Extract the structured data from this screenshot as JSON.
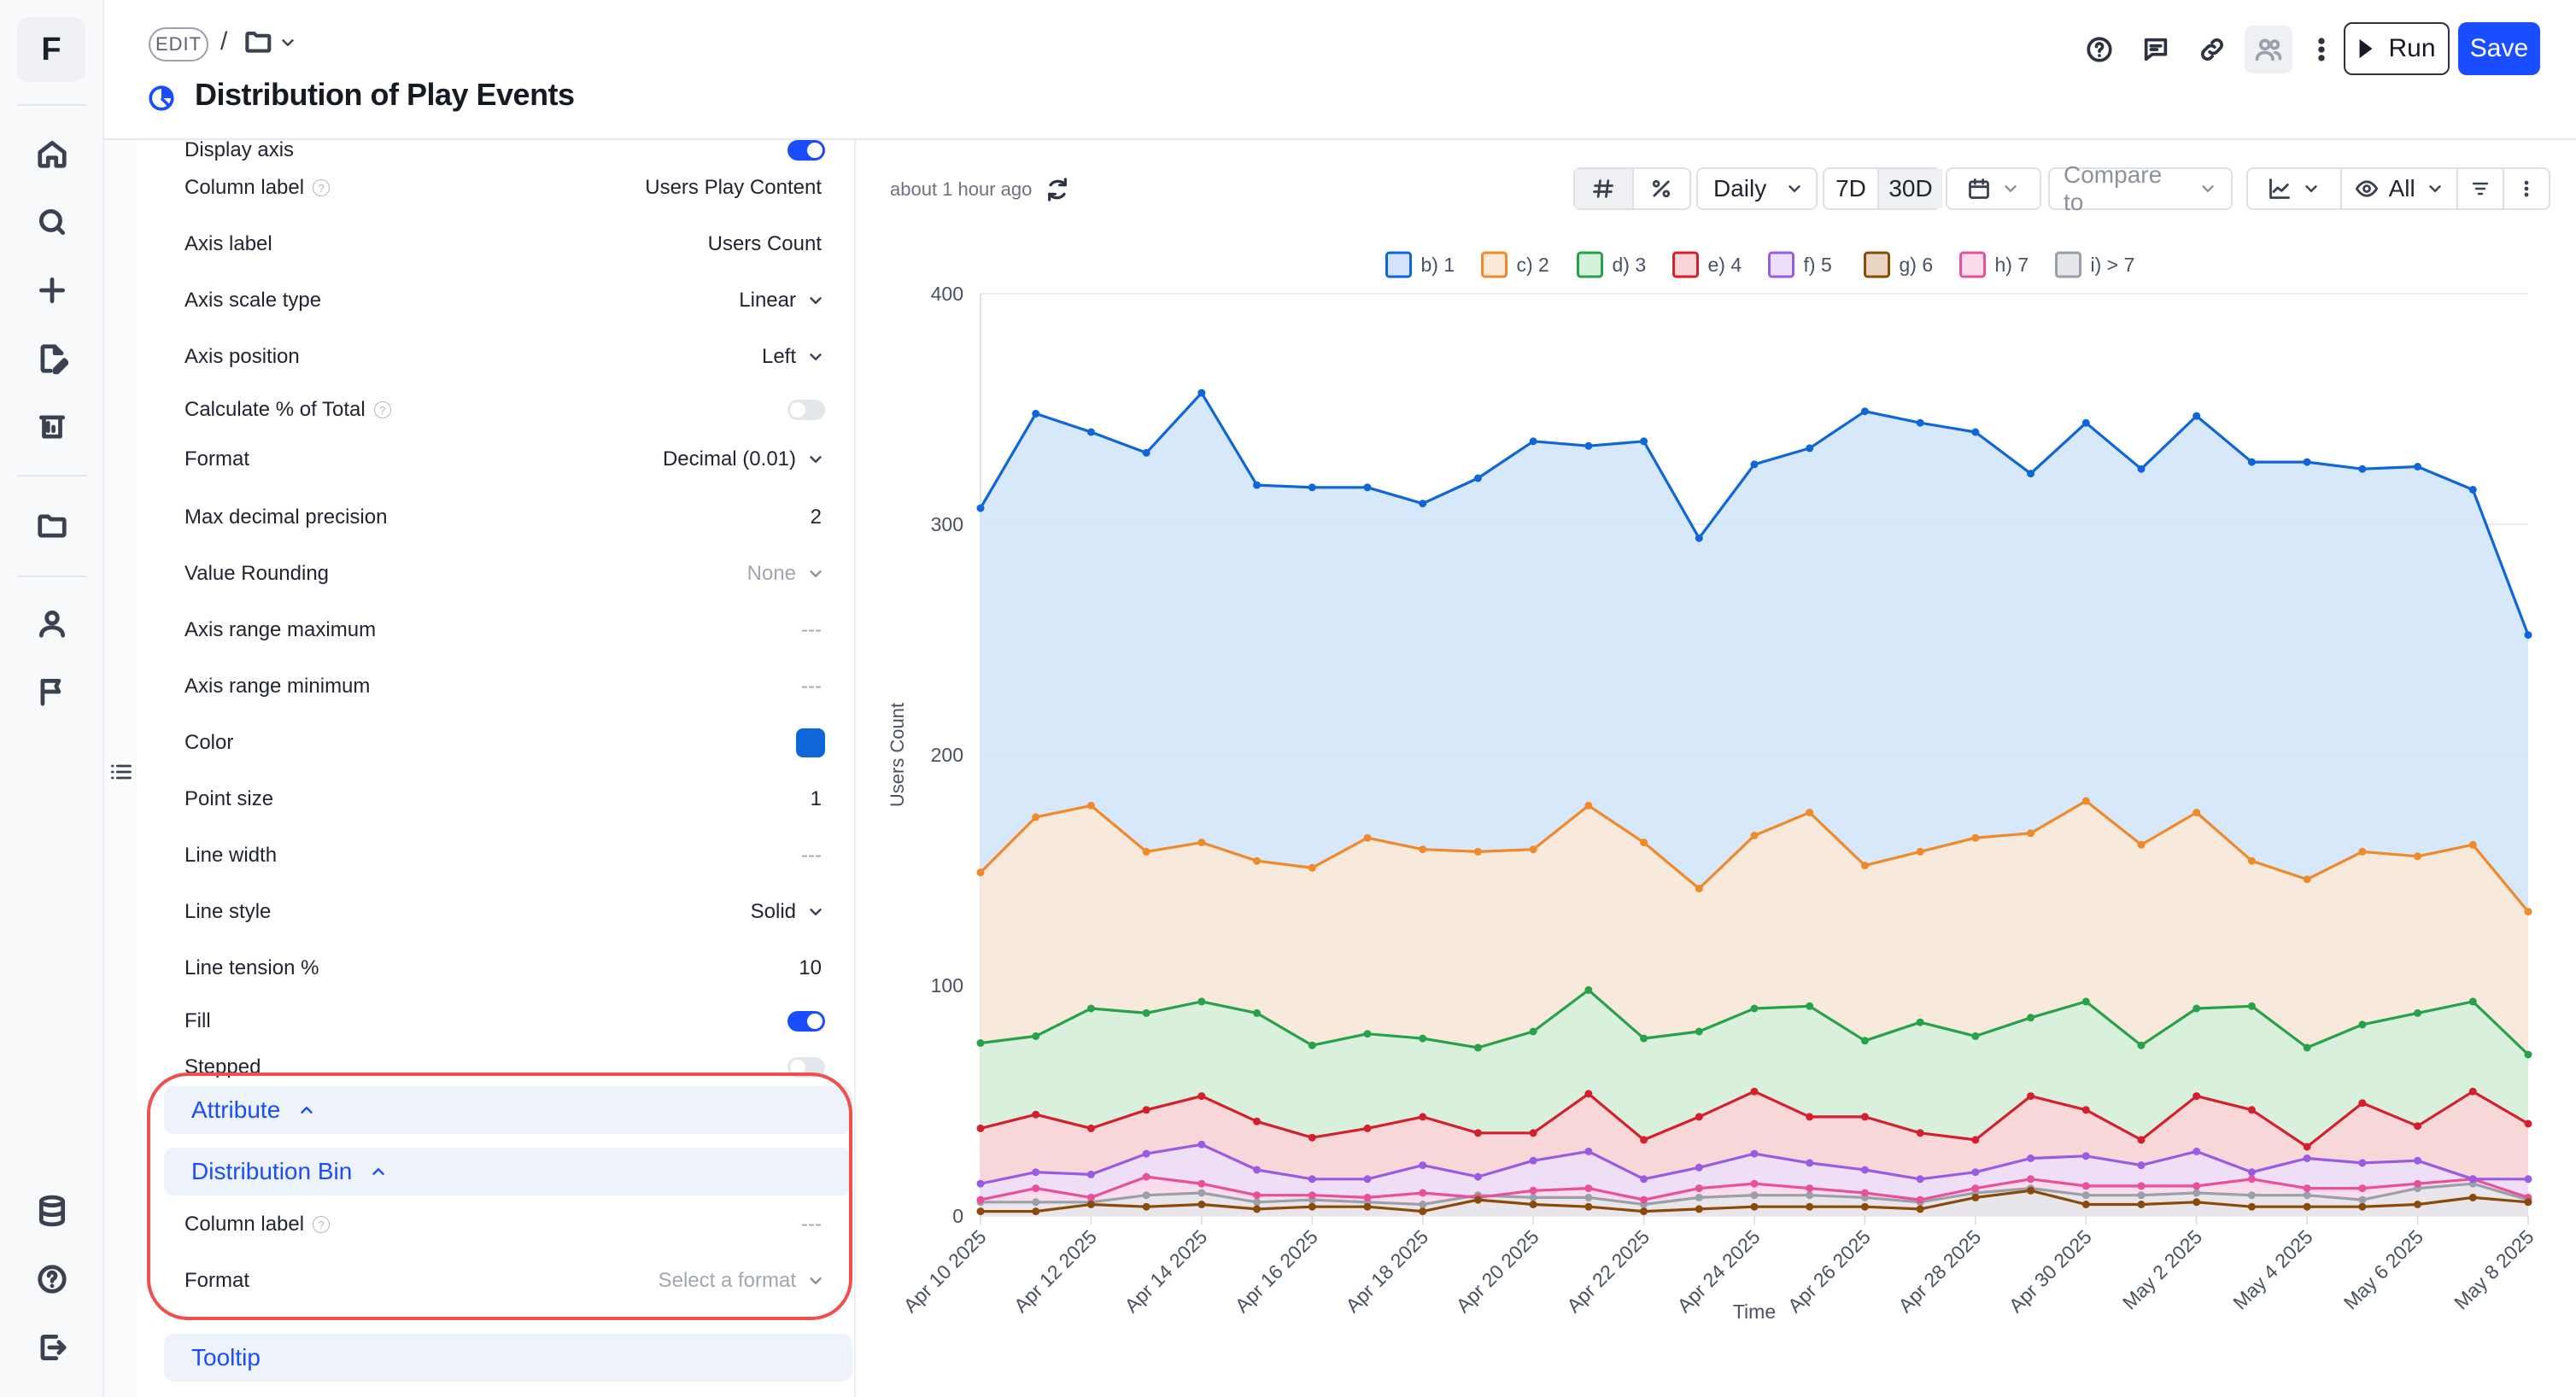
{
  "rail": {
    "logo": "F",
    "items": [
      "home-icon",
      "search-icon",
      "plus-icon",
      "edit-doc-icon",
      "flask-icon",
      "folder-icon",
      "user-icon",
      "flag-icon"
    ],
    "bottom": [
      "database-icon",
      "help-icon",
      "logout-icon"
    ]
  },
  "header": {
    "edit_label": "EDIT",
    "separator": "/",
    "title": "Distribution of Play Events",
    "run_label": "Run",
    "save_label": "Save",
    "accent": "#1a4dff"
  },
  "settings": {
    "rows": [
      {
        "label": "Display axis",
        "kind": "toggle",
        "on": true
      },
      {
        "label": "Column label",
        "kind": "text",
        "value": "Users Play Content",
        "info": true
      },
      {
        "label": "Axis label",
        "kind": "text",
        "value": "Users Count"
      },
      {
        "label": "Axis scale type",
        "kind": "select",
        "value": "Linear"
      },
      {
        "label": "Axis position",
        "kind": "select",
        "value": "Left"
      },
      {
        "label": "Calculate % of Total",
        "kind": "toggle",
        "on": false,
        "info": true
      },
      {
        "label": "Format",
        "kind": "select",
        "value": "Decimal (0.01)"
      },
      {
        "label": "Max decimal precision",
        "kind": "text",
        "value": "2"
      },
      {
        "label": "Value Rounding",
        "kind": "select",
        "value": "None",
        "muted": true
      },
      {
        "label": "Axis range maximum",
        "kind": "text",
        "value": "---",
        "muted": true
      },
      {
        "label": "Axis range minimum",
        "kind": "text",
        "value": "---",
        "muted": true
      },
      {
        "label": "Color",
        "kind": "color",
        "value": "#0f66d9"
      },
      {
        "label": "Point size",
        "kind": "text",
        "value": "1"
      },
      {
        "label": "Line width",
        "kind": "text",
        "value": "---",
        "muted": true
      },
      {
        "label": "Line style",
        "kind": "select",
        "value": "Solid"
      },
      {
        "label": "Line tension %",
        "kind": "text",
        "value": "10"
      },
      {
        "label": "Fill",
        "kind": "toggle",
        "on": true
      },
      {
        "label": "Stepped",
        "kind": "toggle",
        "on": false
      }
    ],
    "sections": {
      "attribute": "Attribute",
      "distribution_bin": "Distribution Bin",
      "tooltip": "Tooltip"
    },
    "bin_rows": [
      {
        "label": "Column label",
        "kind": "text",
        "value": "---",
        "muted": true,
        "info": true
      },
      {
        "label": "Format",
        "kind": "select",
        "value": "Select a format",
        "muted": true
      }
    ]
  },
  "toolbar": {
    "updated": "about 1 hour ago",
    "granularity": "Daily",
    "range_7d": "7D",
    "range_30d": "30D",
    "compare": "Compare to",
    "visibility": "All"
  },
  "chart_data": {
    "type": "area",
    "stacked": false,
    "ylabel": "Users Count",
    "xlabel": "Time",
    "ylim": [
      0,
      400
    ],
    "yticks": [
      0,
      100,
      200,
      300,
      400
    ],
    "xtick_labels": [
      "Apr 10 2025",
      "Apr 12 2025",
      "Apr 14 2025",
      "Apr 16 2025",
      "Apr 18 2025",
      "Apr 20 2025",
      "Apr 22 2025",
      "Apr 24 2025",
      "Apr 26 2025",
      "Apr 28 2025",
      "Apr 30 2025",
      "May 2 2025",
      "May 4 2025",
      "May 6 2025",
      "May 8 2025"
    ],
    "legend_position": "top",
    "series": [
      {
        "name": "b) 1",
        "color": "#0f66d9",
        "fill": "#d4e5fb",
        "values": [
          307,
          348,
          340,
          331,
          357,
          317,
          316,
          316,
          309,
          320,
          336,
          334,
          336,
          294,
          326,
          333,
          349,
          344,
          340,
          322,
          344,
          324,
          347,
          327,
          327,
          324,
          325,
          315,
          252
        ]
      },
      {
        "name": "c) 2",
        "color": "#ef8a2b",
        "fill": "#fbe9d8",
        "values": [
          149,
          173,
          178,
          158,
          162,
          154,
          151,
          164,
          159,
          158,
          159,
          178,
          162,
          142,
          165,
          175,
          152,
          158,
          164,
          166,
          180,
          161,
          175,
          154,
          146,
          158,
          156,
          161,
          132
        ]
      },
      {
        "name": "d) 3",
        "color": "#27a24a",
        "fill": "#d5f2dc",
        "values": [
          75,
          78,
          90,
          88,
          93,
          88,
          74,
          79,
          77,
          73,
          80,
          98,
          77,
          80,
          90,
          91,
          76,
          84,
          78,
          86,
          93,
          74,
          90,
          91,
          73,
          83,
          88,
          93,
          70
        ]
      },
      {
        "name": "e) 4",
        "color": "#d41f2d",
        "fill": "#f9d4d7",
        "values": [
          38,
          44,
          38,
          46,
          52,
          41,
          34,
          38,
          43,
          36,
          36,
          53,
          33,
          43,
          54,
          43,
          43,
          36,
          33,
          52,
          46,
          33,
          52,
          46,
          30,
          49,
          39,
          54,
          40
        ]
      },
      {
        "name": "f) 5",
        "color": "#9a5be3",
        "fill": "#ece0fa",
        "values": [
          14,
          19,
          18,
          27,
          31,
          20,
          16,
          16,
          22,
          17,
          24,
          28,
          16,
          21,
          27,
          23,
          20,
          16,
          19,
          25,
          26,
          22,
          28,
          19,
          25,
          23,
          24,
          16,
          16
        ]
      },
      {
        "name": "g) 6",
        "color": "#8a4b0a",
        "fill": "#e9d6c2",
        "values": [
          2,
          2,
          5,
          4,
          5,
          3,
          4,
          4,
          2,
          7,
          5,
          4,
          2,
          3,
          4,
          4,
          4,
          3,
          8,
          11,
          5,
          5,
          6,
          4,
          4,
          4,
          5,
          8,
          6
        ]
      },
      {
        "name": "h) 7",
        "color": "#e8519a",
        "fill": "#fbdcec",
        "values": [
          7,
          12,
          8,
          17,
          14,
          9,
          9,
          8,
          10,
          8,
          11,
          12,
          7,
          12,
          14,
          12,
          10,
          7,
          12,
          16,
          13,
          13,
          13,
          16,
          12,
          12,
          14,
          16,
          8
        ]
      },
      {
        "name": "i) > 7",
        "color": "#9aa0aa",
        "fill": "#e6e7ea",
        "values": [
          6,
          6,
          6,
          9,
          10,
          6,
          7,
          6,
          5,
          9,
          8,
          8,
          5,
          8,
          9,
          9,
          8,
          6,
          10,
          12,
          9,
          9,
          10,
          9,
          9,
          7,
          12,
          14,
          7
        ]
      }
    ]
  }
}
